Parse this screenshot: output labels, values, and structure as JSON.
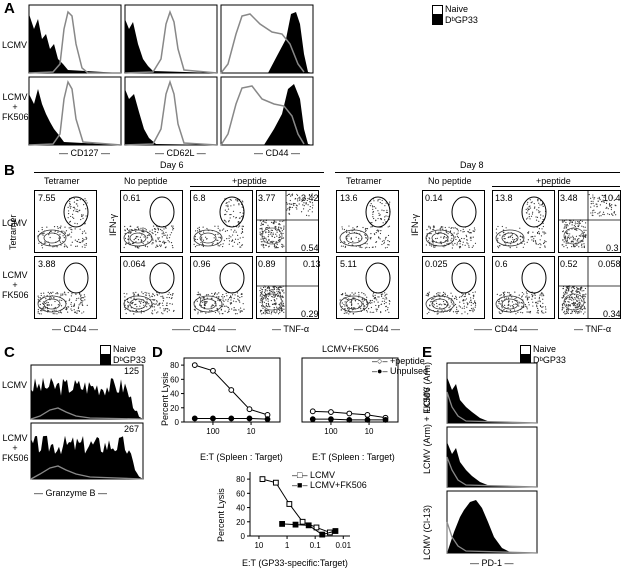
{
  "A": {
    "letter": "A",
    "legend": [
      "Naive",
      "DᵇGP33"
    ],
    "rows": [
      "LCMV",
      "LCMV",
      "+",
      "FK506"
    ],
    "x_labels": [
      "CD127",
      "CD62L",
      "CD44"
    ]
  },
  "B": {
    "letter": "B",
    "days": [
      "Day 6",
      "Day 8"
    ],
    "col_titles": [
      "Tetramer",
      "No peptide",
      "+peptide"
    ],
    "rows": [
      "LCMV",
      "LCMV",
      "+",
      "FK506"
    ],
    "y_labels": [
      "Tetramer",
      "IFN-γ",
      "IFN-γ"
    ],
    "x_labels": [
      "CD44",
      "CD44",
      "TNF-α",
      "CD44",
      "CD44",
      "TNF-α"
    ],
    "day6_row1": [
      "7.55",
      "0.61",
      "6.8",
      "3.77",
      "3.42",
      "0.54"
    ],
    "day6_row2": [
      "3.88",
      "0.064",
      "0.96",
      "0.89",
      "0.13",
      "0.29"
    ],
    "day8_row1": [
      "13.6",
      "0.14",
      "13.8",
      "3.48",
      "10.4",
      "0.3"
    ],
    "day8_row2": [
      "5.11",
      "0.025",
      "0.6",
      "0.52",
      "0.058",
      "0.34"
    ]
  },
  "C": {
    "letter": "C",
    "legend": [
      "Naive",
      "DᵇGP33"
    ],
    "rows": [
      "LCMV",
      "LCMV",
      "+",
      "FK506"
    ],
    "values": [
      "125",
      "267"
    ],
    "x_label": "Granzyme B"
  },
  "D": {
    "letter": "D",
    "titles": [
      "LCMV",
      "LCMV+FK506"
    ],
    "ylabel": "Percent Lysis",
    "xlabel_top": "E:T (Spleen : Target)",
    "xlabel_bottom": "E:T (GP33-specific:Target)",
    "legend_top": [
      "+peptide",
      "Unpulsed"
    ],
    "legend_bottom": [
      "LCMV",
      "LCMV+FK506"
    ],
    "yticks_top": [
      "0",
      "20",
      "40",
      "60",
      "80"
    ],
    "xticks_top": [
      "100",
      "10"
    ],
    "yticks_bottom": [
      "0",
      "20",
      "40",
      "60",
      "80"
    ],
    "xticks_bottom": [
      "10",
      "1",
      "0.1",
      "0.01"
    ]
  },
  "E": {
    "letter": "E",
    "legend": [
      "Naive",
      "DᵇGP33"
    ],
    "rows": [
      "LCMV (Arm)",
      "LCMV (Arm)",
      "+",
      "FK506",
      "LCMV (Cl-13)"
    ],
    "x_label": "PD-1"
  },
  "chart_data": [
    {
      "type": "line",
      "title": "LCMV",
      "xlabel": "E:T (Spleen : Target)",
      "ylabel": "Percent Lysis",
      "xscale": "log-reversed",
      "ylim": [
        0,
        90
      ],
      "x": [
        300,
        100,
        33,
        11,
        3.7
      ],
      "series": [
        {
          "name": "+peptide",
          "values": [
            80,
            72,
            45,
            18,
            10
          ]
        },
        {
          "name": "Unpulsed",
          "values": [
            5,
            5,
            5,
            5,
            4
          ]
        }
      ]
    },
    {
      "type": "line",
      "title": "LCMV+FK506",
      "xlabel": "E:T (Spleen : Target)",
      "ylabel": "Percent Lysis",
      "xscale": "log-reversed",
      "ylim": [
        0,
        90
      ],
      "x": [
        300,
        100,
        33,
        11,
        3.7
      ],
      "series": [
        {
          "name": "+peptide",
          "values": [
            15,
            14,
            12,
            10,
            6
          ]
        },
        {
          "name": "Unpulsed",
          "values": [
            4,
            4,
            3,
            3,
            3
          ]
        }
      ]
    },
    {
      "type": "line",
      "xlabel": "E:T (GP33-specific:Target)",
      "ylabel": "Percent Lysis",
      "xscale": "log-reversed",
      "ylim": [
        0,
        90
      ],
      "series": [
        {
          "name": "LCMV",
          "x": [
            7.5,
            2.5,
            0.83,
            0.28,
            0.09,
            0.03
          ],
          "values": [
            80,
            75,
            45,
            20,
            12,
            5
          ]
        },
        {
          "name": "LCMV+FK506",
          "x": [
            1.5,
            0.5,
            0.17,
            0.056,
            0.019
          ],
          "values": [
            17,
            16,
            15,
            2,
            7
          ]
        }
      ]
    }
  ]
}
